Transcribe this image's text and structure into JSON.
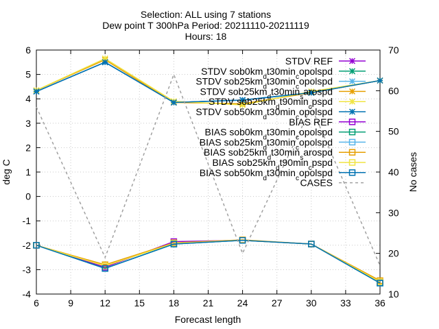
{
  "chart_data": {
    "type": "line",
    "title_lines": [
      "Selection: ALL using     7 stations",
      "Dew point T 300hPa   Period: 20211110-20211119",
      "Hours: 18"
    ],
    "xlabel": "Forecast length",
    "ylabel": "deg C",
    "y2label": "No cases",
    "x": [
      6,
      12,
      18,
      24,
      30,
      36
    ],
    "xlim": [
      6,
      36
    ],
    "xticks": [
      6,
      9,
      12,
      15,
      18,
      21,
      24,
      27,
      30,
      33,
      36
    ],
    "ylim": [
      -4,
      6
    ],
    "yticks": [
      -4,
      -3,
      -2,
      -1,
      0,
      1,
      2,
      3,
      4,
      5,
      6
    ],
    "y2lim": [
      10,
      70
    ],
    "y2ticks": [
      10,
      20,
      30,
      40,
      50,
      60,
      70
    ],
    "grid": true,
    "legend_position": "top-right",
    "series": [
      {
        "name": "STDV REF",
        "color": "#9400d3",
        "marker": "star",
        "axis": "y",
        "values": [
          4.3,
          5.5,
          3.85,
          3.95,
          4.25,
          4.75
        ]
      },
      {
        "name": "STDV sob0km_dt30min_copolspd",
        "color": "#009e73",
        "marker": "star",
        "axis": "y",
        "values": [
          4.3,
          5.5,
          3.85,
          3.95,
          4.25,
          4.75
        ]
      },
      {
        "name": "STDV sob25km_dt30min_copolspd",
        "color": "#56b4e9",
        "marker": "star",
        "axis": "y",
        "values": [
          4.3,
          5.5,
          3.85,
          3.95,
          4.25,
          4.75
        ]
      },
      {
        "name": "STDV sob25km_dt30min_sarospd",
        "color": "#e69f00",
        "marker": "star",
        "axis": "y",
        "values": [
          4.35,
          5.6,
          3.85,
          3.8,
          4.25,
          4.75
        ]
      },
      {
        "name": "STDV sob25km_dt90min_cpspd",
        "color": "#f0e442",
        "marker": "star",
        "axis": "y",
        "values": [
          4.35,
          5.65,
          3.9,
          3.75,
          4.3,
          4.75
        ]
      },
      {
        "name": "STDV sob50km_dt30min_copolspd",
        "color": "#0072b2",
        "marker": "star",
        "axis": "y",
        "values": [
          4.3,
          5.5,
          3.85,
          3.95,
          4.25,
          4.75
        ]
      },
      {
        "name": "BIAS REF",
        "color": "#9400d3",
        "marker": "square",
        "axis": "y",
        "values": [
          -2.0,
          -2.9,
          -1.85,
          -1.8,
          -1.95,
          -3.5
        ]
      },
      {
        "name": "BIAS sob0km_dt30min_copolspd",
        "color": "#009e73",
        "marker": "square",
        "axis": "y",
        "values": [
          -2.0,
          -2.95,
          -1.95,
          -1.8,
          -1.95,
          -3.55
        ]
      },
      {
        "name": "BIAS sob25km_dt30min_copolspd",
        "color": "#56b4e9",
        "marker": "square",
        "axis": "y",
        "values": [
          -2.0,
          -2.95,
          -1.95,
          -1.8,
          -1.95,
          -3.55
        ]
      },
      {
        "name": "BIAS sob25km_dt30min_sarospd",
        "color": "#e69f00",
        "marker": "square",
        "axis": "y",
        "values": [
          -2.0,
          -2.8,
          -1.9,
          -1.78,
          -1.95,
          -3.45
        ]
      },
      {
        "name": "BIAS sob25km_dt90min_cpspd",
        "color": "#f0e442",
        "marker": "square",
        "axis": "y",
        "values": [
          -2.0,
          -2.85,
          -1.92,
          -1.8,
          -1.95,
          -3.5
        ]
      },
      {
        "name": "BIAS sob50km_dt30min_copolspd",
        "color": "#0072b2",
        "marker": "square",
        "axis": "y",
        "values": [
          -2.0,
          -2.95,
          -1.95,
          -1.8,
          -1.95,
          -3.55
        ]
      },
      {
        "name": "CASES",
        "color": "#a0a0a0",
        "marker": "none",
        "dashed": true,
        "axis": "y2",
        "values": [
          56,
          19,
          64,
          20,
          56,
          17
        ]
      }
    ],
    "legend_entries": [
      {
        "pre": "STDV REF",
        "sub": "",
        "mid": "",
        "sub2": "",
        "post": ""
      },
      {
        "pre": "STDV sob0km",
        "sub": "d",
        "mid": "t30min",
        "sub2": "c",
        "post": "opolspd"
      },
      {
        "pre": "STDV sob25km",
        "sub": "d",
        "mid": "t30min",
        "sub2": "c",
        "post": "opolspd"
      },
      {
        "pre": "STDV sob25km",
        "sub": "d",
        "mid": "t30min",
        "sub2": "s",
        "post": "arospd"
      },
      {
        "pre": "STDV sob25km",
        "sub": "d",
        "mid": "t90min",
        "sub2": "c",
        "post": "pspd"
      },
      {
        "pre": "STDV sob50km",
        "sub": "d",
        "mid": "t30min",
        "sub2": "c",
        "post": "opolspd"
      },
      {
        "pre": "BIAS REF",
        "sub": "",
        "mid": "",
        "sub2": "",
        "post": ""
      },
      {
        "pre": "BIAS sob0km",
        "sub": "d",
        "mid": "t30min",
        "sub2": "c",
        "post": "opolspd"
      },
      {
        "pre": "BIAS sob25km",
        "sub": "d",
        "mid": "t30min",
        "sub2": "c",
        "post": "opolspd"
      },
      {
        "pre": "BIAS sob25km",
        "sub": "d",
        "mid": "t30min",
        "sub2": "s",
        "post": "arospd"
      },
      {
        "pre": "BIAS sob25km",
        "sub": "d",
        "mid": "t90min",
        "sub2": "c",
        "post": "pspd"
      },
      {
        "pre": "BIAS sob50km",
        "sub": "d",
        "mid": "t30min",
        "sub2": "c",
        "post": "opolspd"
      },
      {
        "pre": "CASES",
        "sub": "",
        "mid": "",
        "sub2": "",
        "post": ""
      }
    ]
  }
}
